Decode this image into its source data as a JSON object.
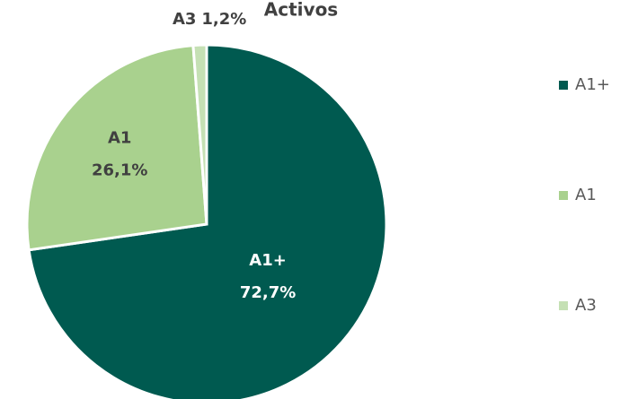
{
  "chart_data": {
    "type": "pie",
    "title": "Activos",
    "categories": [
      "A1+",
      "A1",
      "A3"
    ],
    "values": [
      72.7,
      26.1,
      1.2
    ],
    "value_labels": [
      "72,7%",
      "26,1%",
      "1,2%"
    ],
    "colors": [
      "#005a50",
      "#a9d18e",
      "#c5e0b4"
    ],
    "legend": "right"
  }
}
